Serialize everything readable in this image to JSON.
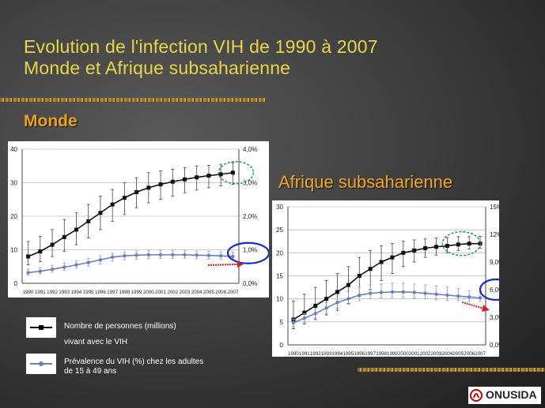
{
  "slide": {
    "title_line1": "Evolution de l'infection VIH de 1990 à 2007",
    "title_line2": "Monde et Afrique subsaharienne",
    "section_world": "Monde",
    "section_africa": "Afrique subsaharienne",
    "logo_text": "ONUSIDA",
    "colors": {
      "title": "#e8d64a",
      "section": "#f0a020",
      "series_count": "#000000",
      "series_prev": "#6a7fc0"
    }
  },
  "legend": {
    "count_label_line1": "Nombre de personnes (millions)",
    "count_label_line2": "vivant avec le VIH",
    "prev_label_line1": "Prévalence du VIH (%) chez les adultes",
    "prev_label_line2": "de 15 à 49 ans"
  },
  "chart_data": [
    {
      "type": "line",
      "region": "Monde",
      "x": [
        "1990",
        "1991",
        "1992",
        "1993",
        "1994",
        "1995",
        "1996",
        "1997",
        "1998",
        "1999",
        "2000",
        "2001",
        "2002",
        "2003",
        "2004",
        "2005",
        "2006",
        "2007"
      ],
      "ylim": [
        0,
        40
      ],
      "y2lim": [
        0,
        4
      ],
      "yticks": [
        "0",
        "10",
        "20",
        "30",
        "40"
      ],
      "y2ticks": [
        "0,0%",
        "1,0%",
        "2,0%",
        "3,0%",
        "4,0%"
      ],
      "series": [
        {
          "axis": "left",
          "values": [
            8,
            9.5,
            11.5,
            13.8,
            16,
            18.5,
            21,
            23.5,
            25.5,
            27.2,
            28.5,
            29.5,
            30.3,
            31,
            31.6,
            32.1,
            32.5,
            33
          ],
          "low": [
            5.5,
            6.5,
            8,
            9.5,
            11.5,
            13.5,
            16,
            18.5,
            20.5,
            22.5,
            24,
            25,
            26,
            27,
            27.8,
            28.5,
            29,
            29.5
          ],
          "high": [
            12.5,
            14,
            16,
            19,
            21,
            23.5,
            26,
            28,
            30,
            31.5,
            33,
            33.5,
            34,
            34.5,
            35,
            35.2,
            35.5,
            36
          ]
        },
        {
          "axis": "right",
          "values": [
            0.32,
            0.36,
            0.42,
            0.48,
            0.55,
            0.62,
            0.7,
            0.78,
            0.82,
            0.84,
            0.85,
            0.85,
            0.85,
            0.85,
            0.84,
            0.83,
            0.82,
            0.8
          ],
          "low": [
            0.25,
            0.28,
            0.33,
            0.39,
            0.45,
            0.51,
            0.58,
            0.66,
            0.7,
            0.72,
            0.73,
            0.74,
            0.74,
            0.74,
            0.73,
            0.72,
            0.72,
            0.71
          ],
          "high": [
            0.42,
            0.47,
            0.54,
            0.6,
            0.67,
            0.74,
            0.82,
            0.9,
            0.94,
            0.96,
            0.97,
            0.97,
            0.97,
            0.97,
            0.96,
            0.95,
            0.94,
            0.93
          ]
        }
      ]
    },
    {
      "type": "line",
      "region": "Afrique subsaharienne",
      "x": [
        "1990",
        "1991",
        "1992",
        "1993",
        "1994",
        "1995",
        "1996",
        "1997",
        "1998",
        "1999",
        "2000",
        "2001",
        "2002",
        "2003",
        "2004",
        "2005",
        "2006",
        "2007"
      ],
      "ylim": [
        0,
        30
      ],
      "y2lim": [
        0,
        15
      ],
      "yticks": [
        "0",
        "5",
        "10",
        "15",
        "20",
        "25",
        "30"
      ],
      "y2ticks": [
        "0,0%",
        "3,0%",
        "6,0%",
        "9,0%",
        "12%",
        "15%"
      ],
      "series": [
        {
          "axis": "left",
          "values": [
            5.5,
            7,
            8.5,
            10,
            11.5,
            13,
            15,
            16.5,
            18,
            19,
            20,
            20.5,
            21,
            21.3,
            21.5,
            21.8,
            22,
            22
          ],
          "low": [
            3.5,
            4.5,
            5.5,
            6.5,
            7.5,
            9,
            10.5,
            12,
            14,
            15.5,
            17,
            18,
            19,
            19.5,
            20,
            20.5,
            20.8,
            21
          ],
          "high": [
            9.5,
            11,
            12.5,
            14,
            15.5,
            17,
            19,
            20.5,
            21.5,
            22,
            22.5,
            22.8,
            23,
            23.2,
            23.3,
            23.5,
            23.5,
            23.6
          ]
        },
        {
          "axis": "right",
          "values": [
            2.4,
            2.9,
            3.4,
            4.0,
            4.6,
            5.0,
            5.4,
            5.6,
            5.7,
            5.75,
            5.75,
            5.7,
            5.6,
            5.5,
            5.4,
            5.3,
            5.2,
            5.1
          ],
          "low": [
            2.0,
            2.4,
            2.9,
            3.4,
            4.0,
            4.4,
            4.8,
            5.0,
            5.1,
            5.15,
            5.15,
            5.1,
            5.0,
            4.9,
            4.8,
            4.8,
            4.7,
            4.7
          ],
          "high": [
            2.8,
            3.4,
            4.0,
            4.6,
            5.3,
            5.8,
            6.3,
            6.5,
            6.6,
            6.7,
            6.7,
            6.6,
            6.5,
            6.4,
            6.3,
            6.1,
            5.9,
            5.8
          ]
        }
      ]
    }
  ]
}
